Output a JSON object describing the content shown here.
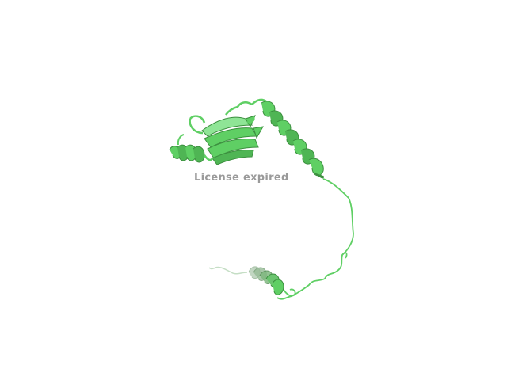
{
  "viewer": {
    "background_color": "#ffffff",
    "watermark_text": "License expired",
    "watermark_color": "#9a9a9a"
  },
  "structure": {
    "representation": "cartoon",
    "color": "#5fcf64",
    "dark_color": "#3c8f3f",
    "light_color": "#8fe596",
    "faded_color": "#7fa47f",
    "elements": [
      "beta-sheet-domain",
      "n-terminal-helix",
      "long-helix",
      "flexible-loop",
      "c-terminal-helix"
    ]
  }
}
